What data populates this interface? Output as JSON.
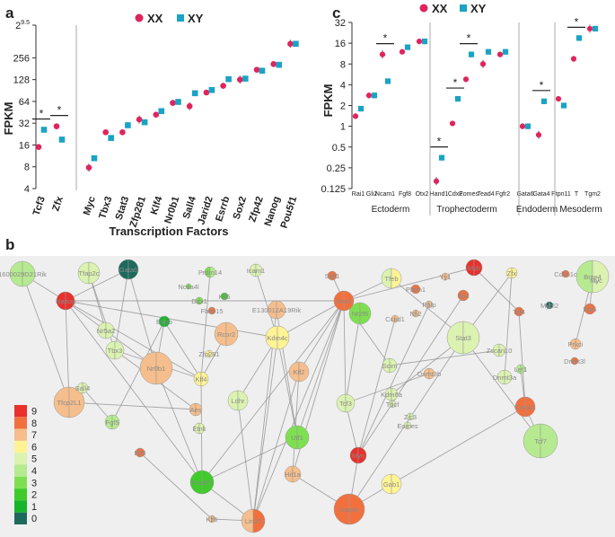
{
  "panel_labels": {
    "a": "a",
    "b": "b",
    "c": "c"
  },
  "colors": {
    "xx": "#e0245e",
    "xy": "#1aa3c4",
    "network_bg": "#efefef"
  },
  "chart_data": [
    {
      "type": "scatter",
      "panel": "a",
      "legend": {
        "xx": "XX",
        "xy": "XY"
      },
      "ylabel": "FPKM",
      "xlabel": "Transcription Factors",
      "y_scale": "log2",
      "ylim": [
        4,
        724
      ],
      "ytick_labels": [
        "4",
        "8",
        "16",
        "32",
        "64",
        "128",
        "256",
        "2^9.5"
      ],
      "yticks": [
        4,
        8,
        16,
        32,
        64,
        128,
        256,
        724
      ],
      "categories": [
        "Tcf3",
        "Zfx",
        "Myc",
        "Tbx3",
        "Stat3",
        "Zfp281",
        "Klf4",
        "Nr0b1",
        "Sall4",
        "Jarid2",
        "Esrrb",
        "Sox2",
        "Zfp42",
        "Nanog",
        "Pou5f1"
      ],
      "series": [
        {
          "name": "XX",
          "values": [
            15,
            29,
            7.8,
            24,
            24,
            36,
            42,
            61,
            55,
            85,
            105,
            128,
            175,
            210,
            400
          ]
        },
        {
          "name": "XY",
          "values": [
            26,
            19,
            10.5,
            20,
            30,
            33,
            47,
            63,
            83,
            92,
            130,
            132,
            170,
            205,
            400
          ]
        }
      ],
      "significance": [
        {
          "category": "Tcf3",
          "label": "*"
        },
        {
          "category": "Zfx",
          "label": "*"
        }
      ]
    },
    {
      "type": "scatter",
      "panel": "c",
      "legend": {
        "xx": "XX",
        "xy": "XY"
      },
      "ylabel": "FPKM",
      "y_scale": "log2",
      "ylim": [
        0.125,
        32
      ],
      "ytick_labels": [
        "0.125",
        "0.25",
        "0.5",
        "1",
        "2",
        "4",
        "8",
        "16",
        "32"
      ],
      "yticks": [
        0.125,
        0.25,
        0.5,
        1,
        2,
        4,
        8,
        16,
        32
      ],
      "categories": [
        "Rai1",
        "Gli2",
        "Ncam1",
        "Fgf8",
        "Otx2",
        "Hand1",
        "Cdx2",
        "Eomes",
        "Tead4",
        "Fgfr2",
        "Gata6",
        "Gata4",
        "Ptpn11",
        "T",
        "Tgm2"
      ],
      "groups": [
        {
          "label": "Ectoderm",
          "categories": [
            "Rai1",
            "Gli2",
            "Ncam1",
            "Fgf8",
            "Otx2"
          ]
        },
        {
          "label": "Trophectoderm",
          "categories": [
            "Hand1",
            "Cdx2",
            "Eomes",
            "Tead4",
            "Fgfr2"
          ]
        },
        {
          "label": "Endoderm",
          "categories": [
            "Gata6",
            "Gata4"
          ]
        },
        {
          "label": "Mesoderm",
          "categories": [
            "Ptpn11",
            "T",
            "Tgm2"
          ]
        }
      ],
      "series": [
        {
          "name": "XX",
          "values": [
            1.4,
            2.8,
            11,
            12,
            17,
            0.16,
            1.1,
            4.8,
            8,
            11,
            1.0,
            0.75,
            2.5,
            9.5,
            26
          ]
        },
        {
          "name": "XY",
          "values": [
            1.8,
            2.8,
            4.5,
            14,
            17,
            0.35,
            2.5,
            11,
            12,
            12,
            1.0,
            2.3,
            2.0,
            19,
            26
          ]
        }
      ],
      "significance": [
        {
          "category": "Ncam1",
          "label": "*"
        },
        {
          "category": "Hand1",
          "label": "*"
        },
        {
          "category": "Cdx2",
          "label": "*"
        },
        {
          "category": "Eomes",
          "label": "*"
        },
        {
          "category": "Gata4",
          "label": "*"
        },
        {
          "category": "T",
          "label": "*"
        }
      ]
    }
  ],
  "network": {
    "legend_values": [
      "9",
      "8",
      "7",
      "6",
      "5",
      "4",
      "3",
      "2",
      "1",
      "0"
    ],
    "nodes": [
      {
        "name": "1600029D21Rik",
        "v1": 4,
        "v2": 4
      },
      {
        "name": "Tfap2c",
        "v1": 5,
        "v2": 5
      },
      {
        "name": "Gata6",
        "v1": 0,
        "v2": 0
      },
      {
        "name": "Prdm14",
        "v1": 3,
        "v2": 4
      },
      {
        "name": "Icam1",
        "v1": 5,
        "v2": 5
      },
      {
        "name": "Sall1",
        "v1": 8,
        "v2": 8
      },
      {
        "name": "Tfeb",
        "v1": 5,
        "v2": 6
      },
      {
        "name": "Yy1",
        "v1": 7,
        "v2": 7
      },
      {
        "name": "Myb",
        "v1": 9,
        "v2": 9
      },
      {
        "name": "Zfx",
        "v1": 6,
        "v2": 6
      },
      {
        "name": "Cdkn1c",
        "v1": 8,
        "v2": 8
      },
      {
        "name": "Bmp4",
        "v1": 4,
        "v2": 5
      },
      {
        "name": "Myc",
        "v1": 5,
        "v2": 5
      },
      {
        "name": "Nanog",
        "v1": 9,
        "v2": 9
      },
      {
        "name": "Ncoa4l",
        "v1": 3,
        "v2": 3
      },
      {
        "name": "Dax1",
        "v1": 3,
        "v2": 3
      },
      {
        "name": "Klf5",
        "v1": 2,
        "v2": 2
      },
      {
        "name": "Esrrb",
        "v1": 1,
        "v2": 1
      },
      {
        "name": "Fbxo15",
        "v1": 8,
        "v2": 8
      },
      {
        "name": "Nr5a2",
        "v1": 5,
        "v2": 5
      },
      {
        "name": "Tbx3",
        "v1": 5,
        "v2": 5
      },
      {
        "name": "Rcor2",
        "v1": 7,
        "v2": 7
      },
      {
        "name": "E130012A19Rik",
        "v1": 7,
        "v2": 7
      },
      {
        "name": "Sox2",
        "v1": 8,
        "v2": 8
      },
      {
        "name": "Pbrm1",
        "v1": 8,
        "v2": 8
      },
      {
        "name": "Phlp",
        "v1": 7,
        "v2": 7
      },
      {
        "name": "Nfi2",
        "v1": 7,
        "v2": 7
      },
      {
        "name": "Sp2",
        "v1": 8,
        "v2": 8
      },
      {
        "name": "Ccnd1",
        "v1": 7,
        "v2": 7
      },
      {
        "name": "Zfp281",
        "v1": 6,
        "v2": 6
      },
      {
        "name": "Stat3",
        "v1": 5,
        "v2": 5
      },
      {
        "name": "Tcf4",
        "v1": 8,
        "v2": 8
      },
      {
        "name": "Mybl2",
        "v1": 0,
        "v2": 0
      },
      {
        "name": "Etv5",
        "v1": 8,
        "v2": 8
      },
      {
        "name": "Nr0b1",
        "v1": 7,
        "v2": 7
      },
      {
        "name": "Tfcp2L1",
        "v1": 7,
        "v2": 7
      },
      {
        "name": "Sall4",
        "v1": 5,
        "v2": 5
      },
      {
        "name": "Klf4",
        "v1": 6,
        "v2": 6
      },
      {
        "name": "Kdm4c",
        "v1": 6,
        "v2": 6
      },
      {
        "name": "Klf2",
        "v1": 7,
        "v2": 7
      },
      {
        "name": "Nr2f6",
        "v1": 3,
        "v2": 3
      },
      {
        "name": "Ldhr",
        "v1": 5,
        "v2": 5
      },
      {
        "name": "Tcf3",
        "v1": 5,
        "v2": 5
      },
      {
        "name": "Scim",
        "v1": 5,
        "v2": 5
      },
      {
        "name": "Dnmt3b",
        "v1": 7,
        "v2": 7
      },
      {
        "name": "Dnmt3a",
        "v1": 5,
        "v2": 5
      },
      {
        "name": "Zscan10",
        "v1": 5,
        "v2": 5
      },
      {
        "name": "Lef1",
        "v1": 4,
        "v2": 4
      },
      {
        "name": "Prkci",
        "v1": 7,
        "v2": 7
      },
      {
        "name": "Dnmt3l",
        "v1": 8,
        "v2": 8
      },
      {
        "name": "Fgf5",
        "v1": 4,
        "v2": 4
      },
      {
        "name": "Aes",
        "v1": 7,
        "v2": 7
      },
      {
        "name": "Etnk",
        "v1": 5,
        "v2": 5
      },
      {
        "name": "Kdm6a",
        "v1": 5,
        "v2": 5
      },
      {
        "name": "Tbcf",
        "v1": 5,
        "v2": 5
      },
      {
        "name": "Zic3",
        "v1": 5,
        "v2": 5
      },
      {
        "name": "Eomes",
        "v1": 5,
        "v2": 5
      },
      {
        "name": "Ctnnb1",
        "v1": 8,
        "v2": 8
      },
      {
        "name": "Tcf7",
        "v1": 4,
        "v2": 4
      },
      {
        "name": "Elf3",
        "v1": 8,
        "v2": 8
      },
      {
        "name": "Utf1",
        "v1": 3,
        "v2": 3
      },
      {
        "name": "Pou5f1",
        "v1": 2,
        "v2": 2
      },
      {
        "name": "Hif1a",
        "v1": 7,
        "v2": 7
      },
      {
        "name": "Myn",
        "v1": 9,
        "v2": 9
      },
      {
        "name": "Gab1",
        "v1": 6,
        "v2": 6
      },
      {
        "name": "Lin28",
        "v1": 7,
        "v2": 8
      },
      {
        "name": "Dppa5",
        "v1": 8,
        "v2": 8
      },
      {
        "name": "Klf6",
        "v1": 7,
        "v2": 7
      }
    ]
  }
}
